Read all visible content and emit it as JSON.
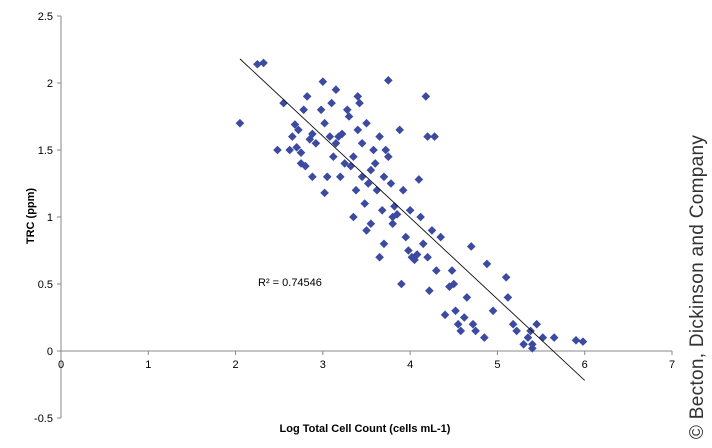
{
  "chart_data": {
    "type": "scatter",
    "title": "",
    "xlabel": "Log Total Cell Count (cells mL-1)",
    "ylabel": "TRC (ppm)",
    "xlim": [
      0,
      7
    ],
    "ylim": [
      -0.5,
      2.5
    ],
    "xticks": [
      "0",
      "1",
      "2",
      "3",
      "4",
      "5",
      "6",
      "7"
    ],
    "yticks": [
      "2.5",
      "2",
      "1.5",
      "1",
      "0.5",
      "0",
      "-0.5"
    ],
    "grid": false,
    "legend": "none",
    "marker": "diamond",
    "marker_color": "#3c4aa0",
    "trendline": {
      "type": "linear",
      "x": [
        2.05,
        6.0
      ],
      "y": [
        2.18,
        -0.22
      ]
    },
    "annotation": "R² = 0.74546",
    "points": [
      [
        2.05,
        1.7
      ],
      [
        2.25,
        2.14
      ],
      [
        2.32,
        2.15
      ],
      [
        2.48,
        1.5
      ],
      [
        2.55,
        1.85
      ],
      [
        2.62,
        1.5
      ],
      [
        2.65,
        1.6
      ],
      [
        2.68,
        1.69
      ],
      [
        2.7,
        1.52
      ],
      [
        2.72,
        1.65
      ],
      [
        2.75,
        1.48
      ],
      [
        2.75,
        1.4
      ],
      [
        2.78,
        1.8
      ],
      [
        2.8,
        1.38
      ],
      [
        2.82,
        1.9
      ],
      [
        2.85,
        1.58
      ],
      [
        2.88,
        1.62
      ],
      [
        2.88,
        1.3
      ],
      [
        2.92,
        1.55
      ],
      [
        2.98,
        1.8
      ],
      [
        3.0,
        2.01
      ],
      [
        3.02,
        1.7
      ],
      [
        3.02,
        1.18
      ],
      [
        3.05,
        1.3
      ],
      [
        3.08,
        1.6
      ],
      [
        3.1,
        1.85
      ],
      [
        3.12,
        1.45
      ],
      [
        3.15,
        1.95
      ],
      [
        3.15,
        1.55
      ],
      [
        3.18,
        1.6
      ],
      [
        3.2,
        1.3
      ],
      [
        3.22,
        1.62
      ],
      [
        3.25,
        1.4
      ],
      [
        3.28,
        1.8
      ],
      [
        3.3,
        1.75
      ],
      [
        3.32,
        1.38
      ],
      [
        3.35,
        1.45
      ],
      [
        3.35,
        1.0
      ],
      [
        3.38,
        1.2
      ],
      [
        3.4,
        1.9
      ],
      [
        3.4,
        1.65
      ],
      [
        3.42,
        1.85
      ],
      [
        3.45,
        1.55
      ],
      [
        3.45,
        1.3
      ],
      [
        3.48,
        1.1
      ],
      [
        3.5,
        1.7
      ],
      [
        3.5,
        0.9
      ],
      [
        3.52,
        1.25
      ],
      [
        3.55,
        1.35
      ],
      [
        3.55,
        0.95
      ],
      [
        3.58,
        1.5
      ],
      [
        3.6,
        1.4
      ],
      [
        3.62,
        1.2
      ],
      [
        3.65,
        1.6
      ],
      [
        3.65,
        0.7
      ],
      [
        3.68,
        1.05
      ],
      [
        3.7,
        1.3
      ],
      [
        3.7,
        0.8
      ],
      [
        3.72,
        1.5
      ],
      [
        3.75,
        2.02
      ],
      [
        3.75,
        1.45
      ],
      [
        3.78,
        1.25
      ],
      [
        3.8,
        1.0
      ],
      [
        3.8,
        0.95
      ],
      [
        3.82,
        1.08
      ],
      [
        3.85,
        1.02
      ],
      [
        3.88,
        1.65
      ],
      [
        3.9,
        0.5
      ],
      [
        3.92,
        1.2
      ],
      [
        3.95,
        0.85
      ],
      [
        3.98,
        0.75
      ],
      [
        4.0,
        1.05
      ],
      [
        4.02,
        0.7
      ],
      [
        4.05,
        0.68
      ],
      [
        4.08,
        0.72
      ],
      [
        4.1,
        1.28
      ],
      [
        4.12,
        1.0
      ],
      [
        4.15,
        0.8
      ],
      [
        4.18,
        1.9
      ],
      [
        4.2,
        1.6
      ],
      [
        4.2,
        0.7
      ],
      [
        4.22,
        0.45
      ],
      [
        4.25,
        0.9
      ],
      [
        4.28,
        1.6
      ],
      [
        4.3,
        0.6
      ],
      [
        4.35,
        0.85
      ],
      [
        4.4,
        0.27
      ],
      [
        4.45,
        0.48
      ],
      [
        4.48,
        0.6
      ],
      [
        4.5,
        0.5
      ],
      [
        4.52,
        0.3
      ],
      [
        4.55,
        0.2
      ],
      [
        4.58,
        0.15
      ],
      [
        4.62,
        0.25
      ],
      [
        4.65,
        0.4
      ],
      [
        4.7,
        0.78
      ],
      [
        4.72,
        0.2
      ],
      [
        4.75,
        0.15
      ],
      [
        4.85,
        0.1
      ],
      [
        4.88,
        0.65
      ],
      [
        4.95,
        0.3
      ],
      [
        5.1,
        0.55
      ],
      [
        5.12,
        0.4
      ],
      [
        5.18,
        0.2
      ],
      [
        5.22,
        0.15
      ],
      [
        5.3,
        0.05
      ],
      [
        5.35,
        0.1
      ],
      [
        5.38,
        0.15
      ],
      [
        5.4,
        0.05
      ],
      [
        5.4,
        0.02
      ],
      [
        5.45,
        0.2
      ],
      [
        5.52,
        0.1
      ],
      [
        5.65,
        0.1
      ],
      [
        5.9,
        0.08
      ],
      [
        5.98,
        0.07
      ]
    ]
  },
  "credit": "© Becton, Dickinson and Company"
}
